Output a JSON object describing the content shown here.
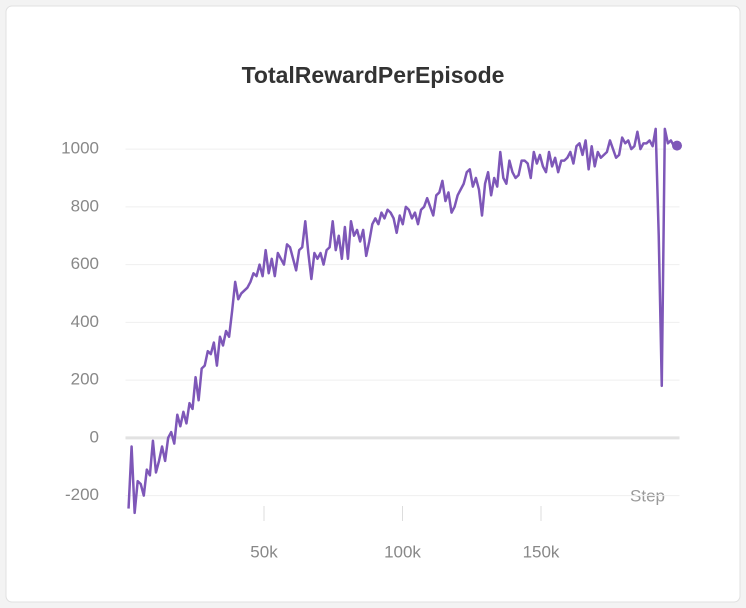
{
  "chart_data": {
    "type": "line",
    "title": "TotalRewardPerEpisode",
    "x_label": "Step",
    "x": [
      1100,
      2200,
      3300,
      4400,
      5500,
      6600,
      7700,
      8800,
      9900,
      11000,
      12100,
      13200,
      14300,
      15400,
      16500,
      17600,
      18700,
      19800,
      20900,
      22000,
      23100,
      24200,
      25300,
      26400,
      27500,
      28600,
      29700,
      30800,
      31900,
      33000,
      34100,
      35200,
      36300,
      37400,
      38500,
      39600,
      40700,
      41800,
      42900,
      44000,
      45100,
      46200,
      47300,
      48400,
      49500,
      50600,
      51700,
      52800,
      53900,
      55000,
      56100,
      57200,
      58300,
      59400,
      60500,
      61600,
      62700,
      63800,
      64900,
      66000,
      67100,
      68200,
      69300,
      70400,
      71500,
      72600,
      73700,
      74800,
      75900,
      77000,
      78100,
      79200,
      80300,
      81400,
      82500,
      83600,
      84700,
      85800,
      86900,
      88000,
      89100,
      90200,
      91300,
      92400,
      93500,
      94600,
      95700,
      96800,
      97900,
      99000,
      100100,
      101200,
      102300,
      103400,
      104500,
      105600,
      106700,
      107800,
      108900,
      110000,
      111100,
      112200,
      113300,
      114400,
      115500,
      116600,
      117700,
      118800,
      119900,
      121000,
      122100,
      123200,
      124300,
      125400,
      126500,
      127600,
      128700,
      129800,
      130900,
      132000,
      133100,
      134200,
      135300,
      136400,
      137500,
      138600,
      139700,
      140800,
      141900,
      143000,
      144100,
      145200,
      146300,
      147400,
      148500,
      149600,
      150700,
      151800,
      152900,
      154000,
      155100,
      156200,
      157300,
      158400,
      159500,
      160600,
      161700,
      162800,
      163900,
      165000,
      166100,
      167200,
      168300,
      169400,
      170500,
      171600,
      172700,
      173800,
      174900,
      176000,
      177100,
      178200,
      179300,
      180400,
      181500,
      182600,
      183700,
      184800,
      185900,
      187000,
      188100,
      189200,
      190300,
      191400,
      192500,
      193600,
      194700,
      195800,
      196900,
      198000,
      199100
    ],
    "values": [
      -245,
      -30,
      -260,
      -150,
      -160,
      -200,
      -110,
      -130,
      -10,
      -120,
      -80,
      -30,
      -80,
      0,
      20,
      -20,
      80,
      40,
      90,
      50,
      120,
      100,
      210,
      130,
      240,
      250,
      300,
      290,
      330,
      250,
      350,
      320,
      370,
      350,
      440,
      540,
      480,
      500,
      510,
      520,
      540,
      570,
      560,
      600,
      560,
      650,
      570,
      620,
      560,
      640,
      620,
      600,
      670,
      660,
      620,
      580,
      650,
      660,
      750,
      640,
      550,
      640,
      620,
      640,
      600,
      650,
      660,
      750,
      650,
      700,
      620,
      730,
      620,
      750,
      700,
      720,
      680,
      720,
      630,
      680,
      740,
      760,
      740,
      780,
      760,
      790,
      780,
      760,
      710,
      770,
      740,
      800,
      790,
      760,
      780,
      740,
      790,
      800,
      830,
      800,
      770,
      840,
      850,
      890,
      820,
      850,
      780,
      800,
      840,
      860,
      880,
      920,
      930,
      870,
      900,
      860,
      770,
      880,
      920,
      840,
      900,
      870,
      990,
      900,
      880,
      960,
      920,
      900,
      910,
      960,
      960,
      950,
      900,
      990,
      950,
      980,
      940,
      920,
      990,
      940,
      970,
      920,
      960,
      960,
      970,
      990,
      950,
      1010,
      1020,
      980,
      1030,
      930,
      1010,
      940,
      990,
      970,
      980,
      990,
      1030,
      1000,
      970,
      980,
      1040,
      1020,
      1030,
      1000,
      1010,
      1060,
      1000,
      1020,
      1020,
      1030,
      1010,
      1070,
      700,
      180,
      1070,
      1020,
      1030,
      1010,
      1012
    ],
    "color": "#7e57b8",
    "xlim": [
      0,
      200000
    ],
    "ylim": [
      -250,
      1080
    ],
    "xticks": [
      {
        "value": 50000,
        "label": "50k"
      },
      {
        "value": 100000,
        "label": "100k"
      },
      {
        "value": 150000,
        "label": "150k"
      }
    ],
    "yticks": [
      -200,
      0,
      200,
      400,
      600,
      800,
      1000
    ],
    "grid": true
  }
}
